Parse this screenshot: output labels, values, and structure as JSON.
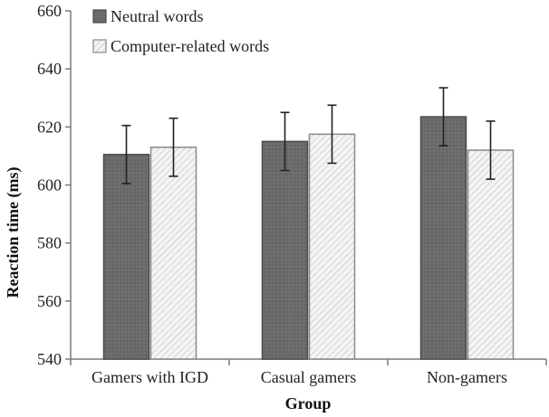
{
  "chart_data": {
    "type": "bar",
    "xlabel": "Group",
    "ylabel": "Reaction time (ms)",
    "ylim": [
      540,
      660
    ],
    "yticks": [
      540,
      560,
      580,
      600,
      620,
      640,
      660
    ],
    "categories": [
      "Gamers with IGD",
      "Casual gamers",
      "Non-gamers"
    ],
    "series": [
      {
        "name": "Neutral words",
        "values": [
          610.5,
          615,
          623.5
        ],
        "errors": [
          10,
          10,
          10
        ],
        "color": "#6b6b6b"
      },
      {
        "name": "Computer-related words",
        "values": [
          613,
          617.5,
          612
        ],
        "errors": [
          10,
          10,
          10
        ],
        "color": "#f2f2f2"
      }
    ],
    "legend": "top-left",
    "grid": false
  }
}
